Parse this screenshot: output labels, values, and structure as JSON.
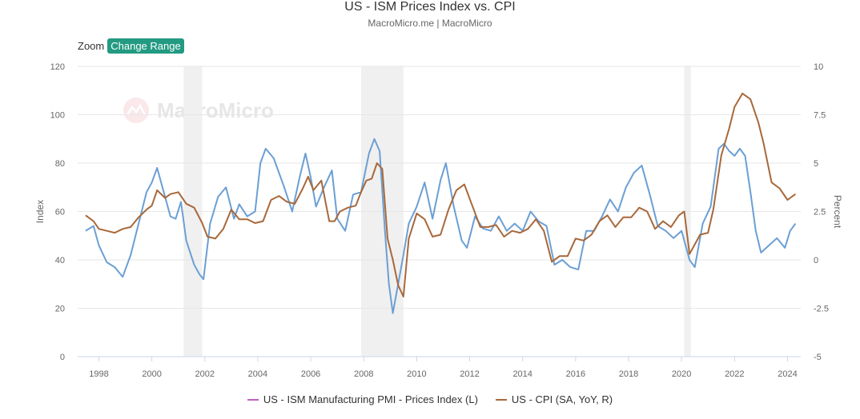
{
  "header": {
    "title": "US - ISM Prices Index vs. CPI",
    "subtitle": "MacroMicro.me | MacroMicro"
  },
  "toolbar": {
    "zoom_label": "Zoom",
    "change_range_label": "Change Range"
  },
  "watermark": {
    "text": "MacroMicro"
  },
  "colors": {
    "pmi": "#6b9fd4",
    "cpi": "#a8683a",
    "recession": "#f0f0f0",
    "grid": "#e6e6e6",
    "axis_text": "#666666",
    "button": "#239a82"
  },
  "chart_data": {
    "type": "line",
    "title": "US - ISM Prices Index vs. CPI",
    "xlabel": "",
    "ylabel_left": "Index",
    "ylabel_right": "Percent",
    "xlim": [
      1997.2,
      2024.5
    ],
    "ylim_left": [
      0,
      120
    ],
    "ylim_right": [
      -5,
      10
    ],
    "yticks_left": [
      0,
      20,
      40,
      60,
      80,
      100,
      120
    ],
    "yticks_right": [
      "-5",
      "-2.5",
      "0",
      "2.5",
      "5",
      "7.5",
      "10"
    ],
    "xticks": [
      "1998",
      "2000",
      "2002",
      "2004",
      "2006",
      "2008",
      "2010",
      "2012",
      "2014",
      "2016",
      "2018",
      "2020",
      "2022",
      "2024"
    ],
    "grid": true,
    "legend_position": "bottom-center",
    "recessions": [
      [
        2001.2,
        2001.9
      ],
      [
        2007.9,
        2009.5
      ],
      [
        2020.1,
        2020.35
      ]
    ],
    "series": [
      {
        "name": "US - ISM Manufacturing PMI - Prices Index (L)",
        "axis": "left",
        "x": [
          1997.5,
          1997.8,
          1998.0,
          1998.3,
          1998.6,
          1998.9,
          1999.2,
          1999.5,
          1999.8,
          2000.0,
          2000.2,
          2000.5,
          2000.7,
          2000.9,
          2001.1,
          2001.3,
          2001.6,
          2001.8,
          2001.95,
          2002.2,
          2002.5,
          2002.8,
          2003.1,
          2003.3,
          2003.6,
          2003.9,
          2004.1,
          2004.3,
          2004.6,
          2004.8,
          2005.0,
          2005.3,
          2005.6,
          2005.8,
          2006.0,
          2006.2,
          2006.5,
          2006.8,
          2007.0,
          2007.3,
          2007.6,
          2007.9,
          2008.2,
          2008.4,
          2008.6,
          2008.8,
          2008.95,
          2009.1,
          2009.3,
          2009.5,
          2009.7,
          2010.0,
          2010.3,
          2010.6,
          2010.9,
          2011.1,
          2011.4,
          2011.7,
          2011.9,
          2012.2,
          2012.5,
          2012.8,
          2013.1,
          2013.4,
          2013.7,
          2014.0,
          2014.3,
          2014.6,
          2014.9,
          2015.2,
          2015.5,
          2015.8,
          2016.1,
          2016.4,
          2016.7,
          2017.0,
          2017.3,
          2017.6,
          2017.9,
          2018.2,
          2018.5,
          2018.8,
          2019.1,
          2019.4,
          2019.7,
          2020.0,
          2020.3,
          2020.5,
          2020.8,
          2021.1,
          2021.4,
          2021.6,
          2021.8,
          2022.0,
          2022.2,
          2022.4,
          2022.6,
          2022.8,
          2023.0,
          2023.3,
          2023.6,
          2023.9,
          2024.1,
          2024.3
        ],
        "values": [
          52,
          54,
          46,
          39,
          37,
          33,
          42,
          55,
          68,
          72,
          78,
          66,
          58,
          57,
          64,
          48,
          38,
          34,
          32,
          55,
          66,
          70,
          57,
          63,
          58,
          60,
          80,
          86,
          82,
          76,
          70,
          60,
          75,
          84,
          74,
          62,
          70,
          77,
          57,
          52,
          67,
          68,
          84,
          90,
          85,
          52,
          30,
          18,
          30,
          42,
          55,
          62,
          72,
          57,
          73,
          80,
          62,
          48,
          45,
          58,
          53,
          52,
          58,
          52,
          55,
          52,
          60,
          56,
          54,
          38,
          40,
          37,
          36,
          52,
          52,
          58,
          65,
          60,
          70,
          76,
          79,
          67,
          54,
          52,
          49,
          52,
          40,
          37,
          55,
          62,
          86,
          88,
          85,
          83,
          86,
          83,
          68,
          52,
          43,
          46,
          49,
          45,
          52,
          55
        ]
      },
      {
        "name": "US - CPI (SA, YoY, R)",
        "axis": "right",
        "x": [
          1997.5,
          1997.8,
          1998.0,
          1998.3,
          1998.6,
          1998.9,
          1999.2,
          1999.5,
          1999.8,
          2000.0,
          2000.2,
          2000.5,
          2000.7,
          2001.0,
          2001.3,
          2001.6,
          2001.9,
          2002.1,
          2002.4,
          2002.7,
          2003.0,
          2003.3,
          2003.6,
          2003.9,
          2004.2,
          2004.5,
          2004.8,
          2005.1,
          2005.4,
          2005.7,
          2005.9,
          2006.1,
          2006.4,
          2006.7,
          2006.9,
          2007.1,
          2007.4,
          2007.7,
          2007.9,
          2008.1,
          2008.3,
          2008.5,
          2008.7,
          2008.9,
          2009.1,
          2009.3,
          2009.5,
          2009.7,
          2010.0,
          2010.3,
          2010.6,
          2010.9,
          2011.2,
          2011.5,
          2011.8,
          2012.1,
          2012.4,
          2012.7,
          2013.0,
          2013.3,
          2013.6,
          2013.9,
          2014.2,
          2014.5,
          2014.8,
          2015.1,
          2015.4,
          2015.7,
          2016.0,
          2016.3,
          2016.6,
          2016.9,
          2017.2,
          2017.5,
          2017.8,
          2018.1,
          2018.4,
          2018.7,
          2019.0,
          2019.3,
          2019.6,
          2019.9,
          2020.1,
          2020.3,
          2020.5,
          2020.7,
          2021.0,
          2021.2,
          2021.5,
          2021.8,
          2022.0,
          2022.3,
          2022.6,
          2022.9,
          2023.1,
          2023.4,
          2023.7,
          2024.0,
          2024.3
        ],
        "values": [
          2.3,
          2.0,
          1.6,
          1.5,
          1.4,
          1.6,
          1.7,
          2.2,
          2.6,
          2.8,
          3.6,
          3.2,
          3.4,
          3.5,
          2.9,
          2.7,
          1.9,
          1.2,
          1.1,
          1.6,
          2.6,
          2.1,
          2.1,
          1.9,
          2.0,
          3.1,
          3.3,
          3.0,
          2.9,
          3.7,
          4.3,
          3.6,
          4.1,
          2.0,
          2.0,
          2.5,
          2.7,
          2.8,
          3.5,
          4.1,
          4.2,
          5.0,
          4.7,
          1.1,
          0.0,
          -1.3,
          -1.9,
          1.1,
          2.4,
          2.1,
          1.2,
          1.3,
          2.6,
          3.6,
          3.9,
          2.8,
          1.7,
          1.7,
          1.8,
          1.2,
          1.5,
          1.4,
          1.6,
          2.1,
          1.5,
          -0.1,
          0.2,
          0.2,
          1.1,
          1.0,
          1.3,
          2.0,
          2.3,
          1.7,
          2.2,
          2.2,
          2.7,
          2.5,
          1.6,
          2.0,
          1.7,
          2.3,
          2.5,
          0.3,
          0.8,
          1.3,
          1.4,
          2.6,
          5.4,
          6.8,
          7.9,
          8.6,
          8.3,
          7.1,
          6.0,
          4.0,
          3.7,
          3.1,
          3.4
        ]
      }
    ]
  }
}
